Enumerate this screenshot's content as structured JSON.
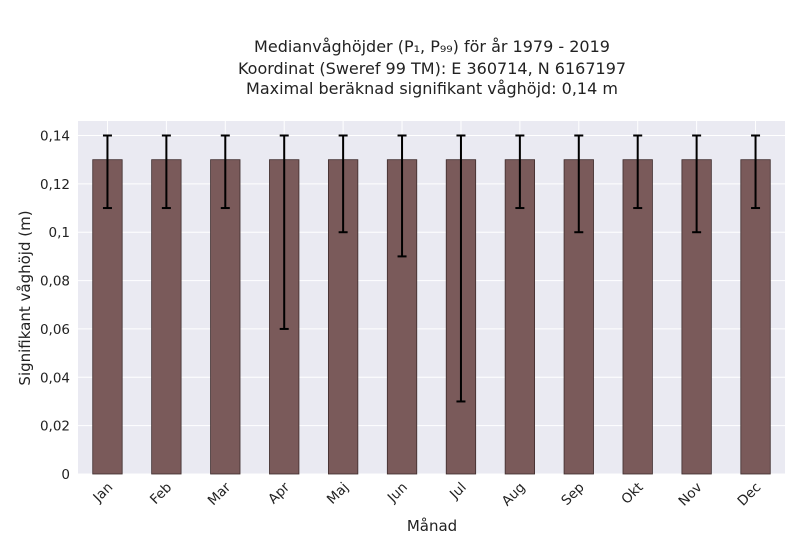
{
  "chart_data": {
    "type": "bar",
    "title_lines": [
      "Medianvåghöjder (P₁, P₉₉) för år 1979 - 2019",
      "Koordinat (Sweref 99 TM): E 360714, N 6167197",
      "Maximal beräknad signifikant våghöjd: 0,14 m"
    ],
    "xlabel": "Månad",
    "ylabel": "Signifikant våghöjd (m)",
    "categories": [
      "Jan",
      "Feb",
      "Mar",
      "Apr",
      "Maj",
      "Jun",
      "Jul",
      "Aug",
      "Sep",
      "Okt",
      "Nov",
      "Dec"
    ],
    "values": [
      0.13,
      0.13,
      0.13,
      0.13,
      0.13,
      0.13,
      0.13,
      0.13,
      0.13,
      0.13,
      0.13,
      0.13
    ],
    "p1": [
      0.11,
      0.11,
      0.11,
      0.06,
      0.1,
      0.09,
      0.03,
      0.11,
      0.1,
      0.11,
      0.1,
      0.11
    ],
    "p99": [
      0.14,
      0.14,
      0.14,
      0.14,
      0.14,
      0.14,
      0.14,
      0.14,
      0.14,
      0.14,
      0.14,
      0.14
    ],
    "ylim": [
      0,
      0.146
    ],
    "yticks": [
      0,
      0.02,
      0.04,
      0.06,
      0.08,
      0.1,
      0.12,
      0.14
    ],
    "ytick_labels": [
      "0",
      "0,02",
      "0,04",
      "0,06",
      "0,08",
      "0,1",
      "0,12",
      "0,14"
    ],
    "grid": true,
    "colors": {
      "bar": "#7a5a5a",
      "bar_edge": "#3d2b2b",
      "error_bar": "#000000",
      "background": "#eaeaf2",
      "grid": "#ffffff"
    }
  }
}
